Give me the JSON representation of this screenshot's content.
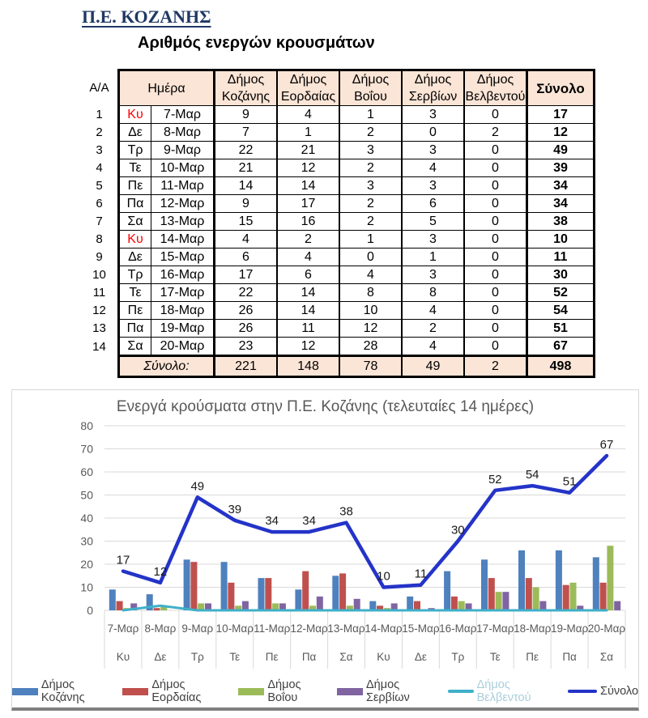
{
  "page": {
    "title": "Π.Ε. ΚΟΖΑΝΗΣ",
    "subtitle": "Αριθμός ενεργών κρουσμάτων"
  },
  "table": {
    "index_header": "Α/Α",
    "day_header": "Ημέρα",
    "columns": [
      "Δήμος Κοζάνης",
      "Δήμος Εορδαίας",
      "Δήμος Βοΐου",
      "Δήμος Σερβίων",
      "Δήμος Βελβεντού"
    ],
    "total_header": "Σύνολο",
    "rows": [
      {
        "index": 1,
        "day": "Κυ",
        "sunday": true,
        "date": "7-Μαρ",
        "values": [
          9,
          4,
          1,
          3,
          0
        ],
        "total": 17
      },
      {
        "index": 2,
        "day": "Δε",
        "sunday": false,
        "date": "8-Μαρ",
        "values": [
          7,
          1,
          2,
          0,
          2
        ],
        "total": 12
      },
      {
        "index": 3,
        "day": "Τρ",
        "sunday": false,
        "date": "9-Μαρ",
        "values": [
          22,
          21,
          3,
          3,
          0
        ],
        "total": 49
      },
      {
        "index": 4,
        "day": "Τε",
        "sunday": false,
        "date": "10-Μαρ",
        "values": [
          21,
          12,
          2,
          4,
          0
        ],
        "total": 39
      },
      {
        "index": 5,
        "day": "Πε",
        "sunday": false,
        "date": "11-Μαρ",
        "values": [
          14,
          14,
          3,
          3,
          0
        ],
        "total": 34
      },
      {
        "index": 6,
        "day": "Πα",
        "sunday": false,
        "date": "12-Μαρ",
        "values": [
          9,
          17,
          2,
          6,
          0
        ],
        "total": 34
      },
      {
        "index": 7,
        "day": "Σα",
        "sunday": false,
        "date": "13-Μαρ",
        "values": [
          15,
          16,
          2,
          5,
          0
        ],
        "total": 38
      },
      {
        "index": 8,
        "day": "Κυ",
        "sunday": true,
        "date": "14-Μαρ",
        "values": [
          4,
          2,
          1,
          3,
          0
        ],
        "total": 10
      },
      {
        "index": 9,
        "day": "Δε",
        "sunday": false,
        "date": "15-Μαρ",
        "values": [
          6,
          4,
          0,
          1,
          0
        ],
        "total": 11
      },
      {
        "index": 10,
        "day": "Τρ",
        "sunday": false,
        "date": "16-Μαρ",
        "values": [
          17,
          6,
          4,
          3,
          0
        ],
        "total": 30
      },
      {
        "index": 11,
        "day": "Τε",
        "sunday": false,
        "date": "17-Μαρ",
        "values": [
          22,
          14,
          8,
          8,
          0
        ],
        "total": 52
      },
      {
        "index": 12,
        "day": "Πε",
        "sunday": false,
        "date": "18-Μαρ",
        "values": [
          26,
          14,
          10,
          4,
          0
        ],
        "total": 54
      },
      {
        "index": 13,
        "day": "Πα",
        "sunday": false,
        "date": "19-Μαρ",
        "values": [
          26,
          11,
          12,
          2,
          0
        ],
        "total": 51
      },
      {
        "index": 14,
        "day": "Σα",
        "sunday": false,
        "date": "20-Μαρ",
        "values": [
          23,
          12,
          28,
          4,
          0
        ],
        "total": 67
      }
    ],
    "total_row": {
      "label": "Σύνολο:",
      "values": [
        221,
        148,
        78,
        49,
        2
      ],
      "total": 498
    }
  },
  "chart_data": {
    "type": "bar+line",
    "title": "Ενεργά κρούσματα στην Π.Ε. Κοζάνης (τελευταίες 14 ημέρες)",
    "categories": [
      "7-Μαρ",
      "8-Μαρ",
      "9-Μαρ",
      "10-Μαρ",
      "11-Μαρ",
      "12-Μαρ",
      "13-Μαρ",
      "14-Μαρ",
      "15-Μαρ",
      "16-Μαρ",
      "17-Μαρ",
      "18-Μαρ",
      "19-Μαρ",
      "20-Μαρ"
    ],
    "categories_day": [
      "Κυ",
      "Δε",
      "Τρ",
      "Τε",
      "Πε",
      "Πα",
      "Σα",
      "Κυ",
      "Δε",
      "Τρ",
      "Τε",
      "Πε",
      "Πα",
      "Σα"
    ],
    "series": [
      {
        "name": "Δήμος Κοζάνης",
        "type": "bar",
        "color": "#4E81BD",
        "values": [
          9,
          7,
          22,
          21,
          14,
          9,
          15,
          4,
          6,
          17,
          22,
          26,
          26,
          23
        ]
      },
      {
        "name": "Δήμος Εορδαίας",
        "type": "bar",
        "color": "#C0504D",
        "values": [
          4,
          1,
          21,
          12,
          14,
          17,
          16,
          2,
          4,
          6,
          14,
          14,
          11,
          12
        ]
      },
      {
        "name": "Δήμος Βοΐου",
        "type": "bar",
        "color": "#9BBB59",
        "values": [
          1,
          2,
          3,
          2,
          3,
          2,
          2,
          1,
          0,
          4,
          8,
          10,
          12,
          28
        ]
      },
      {
        "name": "Δήμος Σερβίων",
        "type": "bar",
        "color": "#8064A2",
        "values": [
          3,
          0,
          3,
          4,
          3,
          6,
          5,
          3,
          1,
          3,
          8,
          4,
          2,
          4
        ]
      },
      {
        "name": "Δήμος Βελβεντού",
        "type": "line",
        "color": "#3FB0C9",
        "legend_text_color": "#A9CEDC",
        "values": [
          0,
          2,
          0,
          0,
          0,
          0,
          0,
          0,
          0,
          0,
          0,
          0,
          0,
          0
        ]
      },
      {
        "name": "Σύνολο",
        "type": "line",
        "color": "#2433C8",
        "show_labels": true,
        "values": [
          17,
          12,
          49,
          39,
          34,
          34,
          38,
          10,
          11,
          30,
          52,
          54,
          51,
          67
        ]
      }
    ],
    "ylim": [
      0,
      80
    ],
    "ytick": 10,
    "grid": true,
    "legend_position": "bottom",
    "axis_text_color": "#595959",
    "grid_color": "#D9D9D9",
    "label_color": "#1a1a1a"
  }
}
